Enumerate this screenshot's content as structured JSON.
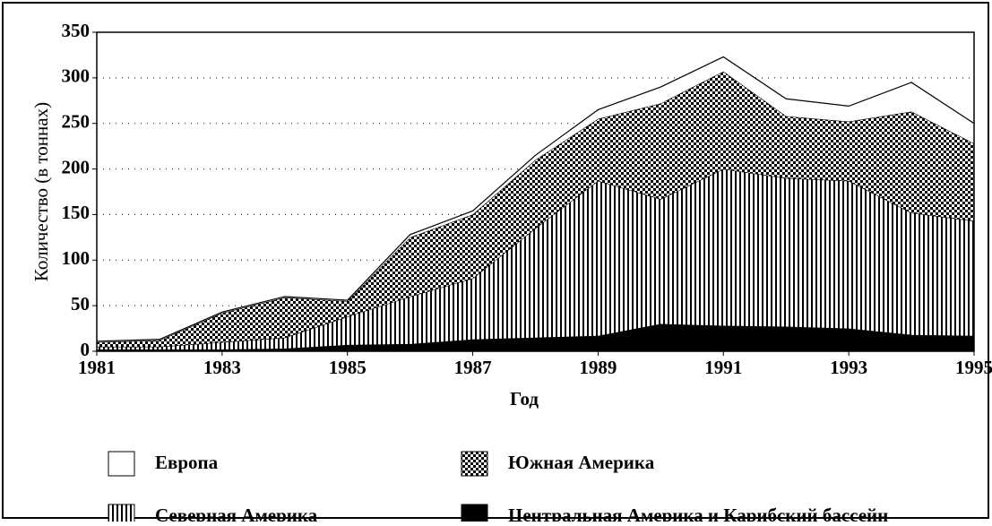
{
  "chart_data": {
    "type": "stacked-area",
    "xlabel": "Год",
    "ylabel": "Количество (в тоннах)",
    "x": [
      1981,
      1982,
      1983,
      1984,
      1985,
      1986,
      1987,
      1988,
      1989,
      1990,
      1991,
      1992,
      1993,
      1994,
      1995
    ],
    "xlim": [
      1981,
      1995
    ],
    "xticks": [
      1981,
      1983,
      1985,
      1987,
      1989,
      1991,
      1993,
      1995
    ],
    "ylim": [
      0,
      350
    ],
    "yticks": [
      0,
      50,
      100,
      150,
      200,
      250,
      300,
      350
    ],
    "grid": true,
    "series": [
      {
        "name": "Центральная Америка и Карибский бассейн",
        "color": "#000000",
        "pattern": "solid",
        "values": [
          2,
          2,
          2,
          3,
          7,
          8,
          13,
          15,
          17,
          30,
          28,
          27,
          25,
          18,
          17
        ]
      },
      {
        "name": "Северная Америка",
        "color": "#000000",
        "pattern": "vertical-stripes",
        "values": [
          3,
          3,
          8,
          12,
          31,
          52,
          67,
          120,
          170,
          137,
          172,
          163,
          162,
          134,
          126
        ]
      },
      {
        "name": "Южная Америка",
        "color": "#000000",
        "pattern": "checker",
        "values": [
          5,
          7,
          32,
          44,
          17,
          65,
          70,
          75,
          68,
          105,
          107,
          68,
          65,
          111,
          85
        ]
      },
      {
        "name": "Европа",
        "color": "#ffffff",
        "pattern": "none",
        "values": [
          1,
          1,
          1,
          1,
          1,
          3,
          4,
          5,
          10,
          18,
          16,
          19,
          17,
          32,
          22
        ]
      }
    ]
  }
}
